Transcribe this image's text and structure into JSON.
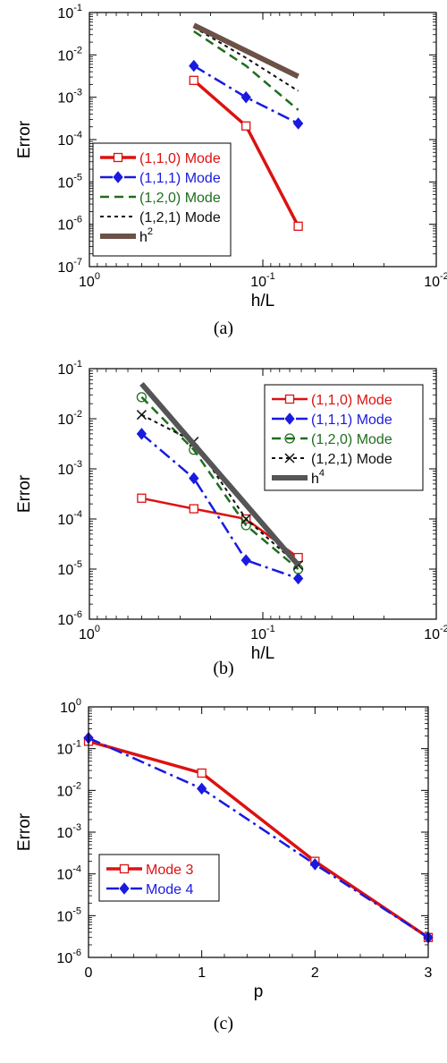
{
  "chart_data": [
    {
      "type": "line",
      "panel_label": "(a)",
      "x_scale": "log",
      "x_reversed": true,
      "y_scale": "log",
      "xlabel": "h/L",
      "ylabel": "Error",
      "xlim": [
        1,
        0.01
      ],
      "ylim": [
        1e-07,
        0.1
      ],
      "x_ticks": [
        {
          "value": 1,
          "base": "10",
          "exp": "0"
        },
        {
          "value": 0.1,
          "base": "10",
          "exp": "-1"
        },
        {
          "value": 0.01,
          "base": "10",
          "exp": "-2"
        }
      ],
      "y_ticks": [
        {
          "value": 0.1,
          "base": "10",
          "exp": "-1"
        },
        {
          "value": 0.01,
          "base": "10",
          "exp": "-2"
        },
        {
          "value": 0.001,
          "base": "10",
          "exp": "-3"
        },
        {
          "value": 0.0001,
          "base": "10",
          "exp": "-4"
        },
        {
          "value": 1e-05,
          "base": "10",
          "exp": "-5"
        },
        {
          "value": 1e-06,
          "base": "10",
          "exp": "-6"
        },
        {
          "value": 1e-07,
          "base": "10",
          "exp": "-7"
        }
      ],
      "legend": {
        "position": "bottom-left"
      },
      "series": [
        {
          "name": "(1,1,0) Mode",
          "color": "#dd1111",
          "dash": "",
          "width": 3.5,
          "marker": "open-square",
          "x": [
            0.25,
            0.125,
            0.0625
          ],
          "y": [
            0.0025,
            0.00021,
            9e-07
          ]
        },
        {
          "name": "(1,1,1) Mode",
          "color": "#1a1ae0",
          "dash": "14,5,3,5",
          "width": 2.5,
          "marker": "filled-diamond",
          "x": [
            0.25,
            0.125,
            0.0625
          ],
          "y": [
            0.0055,
            0.001,
            0.00024
          ]
        },
        {
          "name": "(1,2,0) Mode",
          "color": "#1e6e1e",
          "dash": "10,6",
          "width": 2.5,
          "marker": "none",
          "x": [
            0.25,
            0.125,
            0.0625
          ],
          "y": [
            0.036,
            0.0055,
            0.0005
          ]
        },
        {
          "name": "(1,2,1) Mode",
          "color": "#111111",
          "dash": "4,4",
          "width": 2,
          "marker": "none",
          "x": [
            0.25,
            0.125,
            0.0625
          ],
          "y": [
            0.045,
            0.0085,
            0.0014
          ]
        },
        {
          "name": "h",
          "name_sup": "2",
          "color": "#6b5147",
          "dash": "",
          "width": 6,
          "marker": "none",
          "x": [
            0.25,
            0.0625
          ],
          "y": [
            0.05,
            0.0031
          ]
        }
      ]
    },
    {
      "type": "line",
      "panel_label": "(b)",
      "x_scale": "log",
      "x_reversed": true,
      "y_scale": "log",
      "xlabel": "h/L",
      "ylabel": "Error",
      "xlim": [
        1,
        0.01
      ],
      "ylim": [
        1e-06,
        0.1
      ],
      "x_ticks": [
        {
          "value": 1,
          "base": "10",
          "exp": "0"
        },
        {
          "value": 0.1,
          "base": "10",
          "exp": "-1"
        },
        {
          "value": 0.01,
          "base": "10",
          "exp": "-2"
        }
      ],
      "y_ticks": [
        {
          "value": 0.1,
          "base": "10",
          "exp": "-1"
        },
        {
          "value": 0.01,
          "base": "10",
          "exp": "-2"
        },
        {
          "value": 0.001,
          "base": "10",
          "exp": "-3"
        },
        {
          "value": 0.0001,
          "base": "10",
          "exp": "-4"
        },
        {
          "value": 1e-05,
          "base": "10",
          "exp": "-5"
        },
        {
          "value": 1e-06,
          "base": "10",
          "exp": "-6"
        }
      ],
      "legend": {
        "position": "top-right"
      },
      "series": [
        {
          "name": "(1,1,0) Mode",
          "color": "#dd1111",
          "dash": "",
          "width": 2.5,
          "marker": "open-square",
          "x": [
            0.5,
            0.25,
            0.125,
            0.0625
          ],
          "y": [
            0.00026,
            0.00016,
            0.0001,
            1.7e-05
          ]
        },
        {
          "name": "(1,1,1) Mode",
          "color": "#1a1ae0",
          "dash": "14,5,3,5",
          "width": 2.5,
          "marker": "filled-diamond",
          "x": [
            0.5,
            0.25,
            0.125,
            0.0625
          ],
          "y": [
            0.005,
            0.00065,
            1.5e-05,
            6.5e-06
          ]
        },
        {
          "name": "(1,2,0) Mode",
          "color": "#1e6e1e",
          "dash": "10,6",
          "width": 2.5,
          "marker": "open-circle",
          "x": [
            0.5,
            0.25,
            0.125,
            0.0625
          ],
          "y": [
            0.027,
            0.0024,
            7.5e-05,
            1e-05
          ]
        },
        {
          "name": "(1,2,1) Mode",
          "color": "#111111",
          "dash": "4,4",
          "width": 2,
          "marker": "x",
          "x": [
            0.5,
            0.25,
            0.125,
            0.0625
          ],
          "y": [
            0.012,
            0.0035,
            0.0001,
            1.2e-05
          ]
        },
        {
          "name": "h",
          "name_sup": "4",
          "color": "#555555",
          "dash": "",
          "width": 6,
          "marker": "none",
          "x": [
            0.5,
            0.0625
          ],
          "y": [
            0.05,
            1.2e-05
          ]
        }
      ]
    },
    {
      "type": "line",
      "panel_label": "(c)",
      "x_scale": "linear",
      "x_reversed": false,
      "y_scale": "log",
      "xlabel": "p",
      "ylabel": "Error",
      "xlim": [
        0,
        3
      ],
      "ylim": [
        1e-06,
        1
      ],
      "x_ticks": [
        {
          "value": 0,
          "base": "0",
          "exp": ""
        },
        {
          "value": 1,
          "base": "1",
          "exp": ""
        },
        {
          "value": 2,
          "base": "2",
          "exp": ""
        },
        {
          "value": 3,
          "base": "3",
          "exp": ""
        }
      ],
      "y_ticks": [
        {
          "value": 1,
          "base": "10",
          "exp": "0"
        },
        {
          "value": 0.1,
          "base": "10",
          "exp": "-1"
        },
        {
          "value": 0.01,
          "base": "10",
          "exp": "-2"
        },
        {
          "value": 0.001,
          "base": "10",
          "exp": "-3"
        },
        {
          "value": 0.0001,
          "base": "10",
          "exp": "-4"
        },
        {
          "value": 1e-05,
          "base": "10",
          "exp": "-5"
        },
        {
          "value": 1e-06,
          "base": "10",
          "exp": "-6"
        }
      ],
      "legend": {
        "position": "middle-left"
      },
      "series": [
        {
          "name": "Mode 3",
          "color": "#dd1111",
          "dash": "",
          "width": 3.5,
          "marker": "open-square",
          "x": [
            0,
            1,
            2,
            3
          ],
          "y": [
            0.15,
            0.026,
            0.0002,
            3e-06
          ]
        },
        {
          "name": "Mode 4",
          "color": "#1a1ae0",
          "dash": "14,5,3,5",
          "width": 2.5,
          "marker": "filled-diamond",
          "x": [
            0,
            1,
            2,
            3
          ],
          "y": [
            0.18,
            0.011,
            0.00017,
            3e-06
          ]
        }
      ]
    }
  ]
}
